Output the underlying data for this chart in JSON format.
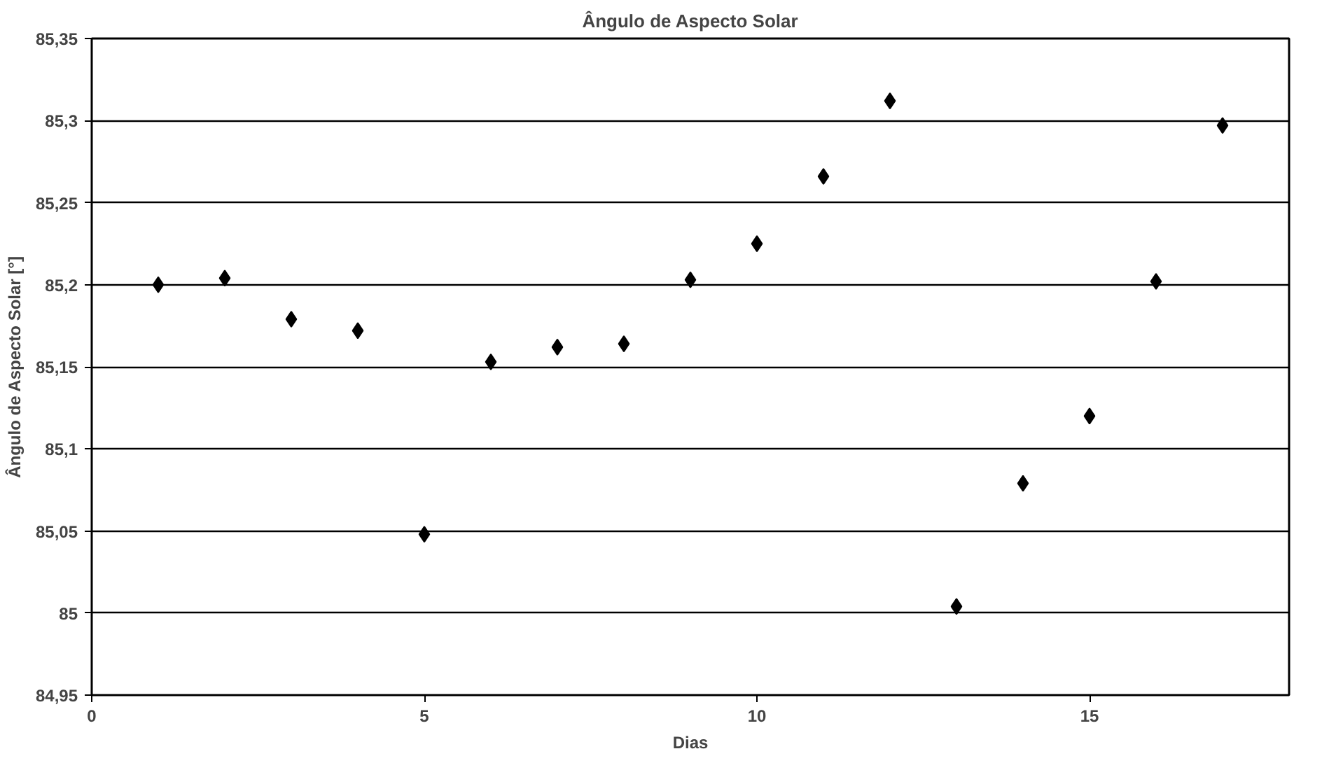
{
  "chart_data": {
    "type": "scatter",
    "title": "Ângulo de Aspecto Solar",
    "xlabel": "Dias",
    "ylabel": "Ângulo de Aspecto Solar [°]",
    "x": [
      1,
      2,
      3,
      4,
      5,
      6,
      7,
      8,
      9,
      10,
      11,
      12,
      13,
      14,
      15,
      16,
      17
    ],
    "series": [
      {
        "color": "#000000",
        "values": [
          85.2,
          85.204,
          85.179,
          85.172,
          85.048,
          85.153,
          85.162,
          85.164,
          85.203,
          85.225,
          85.266,
          85.312,
          85.004,
          85.079,
          85.12,
          85.202,
          85.297
        ]
      }
    ],
    "xlim": [
      0,
      18
    ],
    "xticks": [
      0,
      5,
      10,
      15
    ],
    "ylim": [
      84.95,
      85.35
    ],
    "yticks": [
      {
        "value": 84.95,
        "label": "84,95"
      },
      {
        "value": 85,
        "label": "85"
      },
      {
        "value": 85.05,
        "label": "85,05"
      },
      {
        "value": 85.1,
        "label": "85,1"
      },
      {
        "value": 85.15,
        "label": "85,15"
      },
      {
        "value": 85.2,
        "label": "85,2"
      },
      {
        "value": 85.25,
        "label": "85,25"
      },
      {
        "value": 85.3,
        "label": "85,3"
      },
      {
        "value": 85.35,
        "label": "85,35"
      }
    ],
    "grid": "y",
    "marker": "diamond"
  }
}
